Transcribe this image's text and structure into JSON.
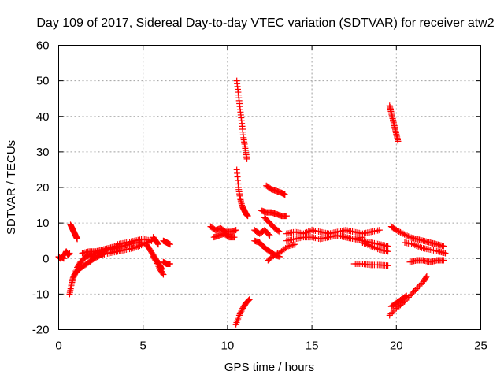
{
  "chart_data": {
    "type": "scatter",
    "title": "Day 109 of 2017, Sidereal Day-to-day VTEC variation (SDTVAR) for receiver atw2",
    "xlabel": "GPS time / hours",
    "ylabel": "SDTVAR / TECUs",
    "xlim": [
      0,
      25
    ],
    "ylim": [
      -20,
      60
    ],
    "xticks": [
      "0",
      "5",
      "10",
      "15",
      "20",
      "25"
    ],
    "yticks": [
      "-20",
      "-10",
      "0",
      "10",
      "20",
      "30",
      "40",
      "50",
      "60"
    ],
    "grid": true,
    "marker": "plus",
    "color": "#ff0000",
    "series": [
      {
        "name": "s1",
        "x": [
          0.0,
          0.1,
          0.2,
          0.3
        ],
        "y": [
          0.5,
          0.0,
          0.5,
          0.0
        ]
      },
      {
        "name": "s2",
        "x": [
          0.35,
          0.45,
          0.55,
          0.65
        ],
        "y": [
          1.0,
          2.0,
          1.0,
          1.5
        ]
      },
      {
        "name": "s3",
        "x": [
          0.7,
          0.8,
          0.9,
          1.0,
          1.1
        ],
        "y": [
          9.5,
          8.5,
          7.5,
          6.5,
          5.5
        ]
      },
      {
        "name": "s4",
        "x": [
          0.65,
          0.75,
          0.85,
          1.0,
          1.2,
          1.5,
          1.8,
          2.1,
          2.4,
          2.7
        ],
        "y": [
          -10.0,
          -7.5,
          -5.5,
          -4.0,
          -3.0,
          -2.0,
          -1.0,
          0.0,
          0.8,
          1.5
        ]
      },
      {
        "name": "s5",
        "x": [
          0.9,
          1.1,
          1.3,
          1.6,
          1.9,
          2.2,
          2.6,
          3.0,
          3.4,
          3.8
        ],
        "y": [
          -5.0,
          -2.5,
          -1.0,
          0.5,
          1.0,
          1.5,
          2.0,
          2.5,
          3.0,
          3.5
        ]
      },
      {
        "name": "s6",
        "x": [
          1.4,
          1.8,
          2.2,
          2.6,
          3.0,
          3.4,
          3.8,
          4.2,
          4.6,
          5.0
        ],
        "y": [
          1.5,
          2.0,
          2.0,
          2.5,
          3.0,
          3.5,
          3.5,
          4.0,
          4.5,
          4.5
        ]
      },
      {
        "name": "s7",
        "x": [
          2.0,
          2.5,
          3.0,
          3.5,
          4.0,
          4.5,
          5.0,
          5.5
        ],
        "y": [
          0.5,
          1.0,
          1.5,
          2.0,
          2.5,
          3.0,
          4.0,
          5.0
        ]
      },
      {
        "name": "s8",
        "x": [
          3.5,
          4.0,
          4.5,
          5.0,
          5.5
        ],
        "y": [
          4.0,
          4.5,
          5.0,
          5.5,
          5.0
        ]
      },
      {
        "name": "s9",
        "x": [
          5.2,
          5.4,
          5.6,
          5.8,
          6.0,
          6.1
        ],
        "y": [
          4.0,
          2.5,
          1.0,
          -0.5,
          -2.0,
          -3.0
        ]
      },
      {
        "name": "s10",
        "x": [
          5.6,
          5.8,
          6.0,
          6.2
        ],
        "y": [
          0.5,
          -1.0,
          -3.0,
          -4.5
        ]
      },
      {
        "name": "s11",
        "x": [
          5.6,
          5.75,
          5.9
        ],
        "y": [
          6.0,
          5.0,
          4.0
        ]
      },
      {
        "name": "s12",
        "x": [
          6.2,
          6.4,
          6.6
        ],
        "y": [
          -1.0,
          -1.5,
          -1.5
        ]
      },
      {
        "name": "s13",
        "x": [
          6.2,
          6.4,
          6.6
        ],
        "y": [
          5.0,
          4.5,
          4.0
        ]
      },
      {
        "name": "s14",
        "x": [
          9.0,
          9.3,
          9.6,
          9.9,
          10.2,
          10.5
        ],
        "y": [
          9.0,
          8.0,
          8.5,
          7.5,
          7.5,
          8.0
        ]
      },
      {
        "name": "s15",
        "x": [
          9.2,
          9.5,
          9.8,
          10.1,
          10.4
        ],
        "y": [
          6.0,
          6.5,
          7.0,
          6.0,
          6.0
        ]
      },
      {
        "name": "s16",
        "x": [
          10.55,
          10.65,
          10.75,
          10.85,
          10.95,
          11.05,
          11.15
        ],
        "y": [
          50.0,
          46.0,
          42.0,
          38.0,
          34.0,
          31.0,
          28.0
        ]
      },
      {
        "name": "s17",
        "x": [
          10.55,
          10.65,
          10.75,
          10.85
        ],
        "y": [
          25.0,
          20.0,
          17.0,
          15.0
        ]
      },
      {
        "name": "s18",
        "x": [
          10.9,
          11.0,
          11.1,
          11.2
        ],
        "y": [
          14.5,
          13.5,
          12.5,
          12.0
        ]
      },
      {
        "name": "s19",
        "x": [
          10.5,
          10.7,
          10.9,
          11.1,
          11.3
        ],
        "y": [
          -18.5,
          -16.0,
          -14.0,
          -12.5,
          -11.5
        ]
      },
      {
        "name": "s20",
        "x": [
          11.6,
          11.9,
          12.2,
          12.5
        ],
        "y": [
          8.0,
          7.0,
          8.0,
          6.5
        ]
      },
      {
        "name": "s21",
        "x": [
          11.6,
          11.9,
          12.2,
          12.5,
          12.8,
          13.1
        ],
        "y": [
          5.0,
          4.5,
          3.0,
          2.0,
          1.0,
          0.5
        ]
      },
      {
        "name": "s22",
        "x": [
          12.3,
          12.6,
          12.9,
          13.2,
          13.4
        ],
        "y": [
          20.5,
          19.5,
          19.0,
          18.5,
          18.0
        ]
      },
      {
        "name": "s23",
        "x": [
          12.0,
          12.3,
          12.6,
          12.9,
          13.2,
          13.5
        ],
        "y": [
          13.5,
          13.0,
          13.0,
          12.5,
          12.0,
          12.0
        ]
      },
      {
        "name": "s24",
        "x": [
          12.2,
          12.5,
          12.8,
          13.1
        ],
        "y": [
          11.5,
          10.0,
          8.5,
          7.5
        ]
      },
      {
        "name": "s25",
        "x": [
          12.4,
          12.8,
          13.2,
          13.6,
          14.0
        ],
        "y": [
          -0.5,
          1.0,
          2.0,
          3.5,
          4.0
        ]
      },
      {
        "name": "s26",
        "x": [
          13.5,
          14.0,
          14.5,
          15.0,
          15.5,
          16.0,
          16.5,
          17.0,
          17.5,
          18.0,
          18.5,
          19.0
        ],
        "y": [
          7.0,
          7.5,
          7.0,
          8.0,
          7.5,
          7.0,
          7.5,
          8.0,
          7.5,
          7.0,
          7.5,
          8.0
        ]
      },
      {
        "name": "s27",
        "x": [
          13.5,
          14.0,
          14.5,
          15.0,
          15.5,
          16.0,
          16.5,
          17.0,
          17.5,
          18.0
        ],
        "y": [
          5.0,
          5.5,
          6.0,
          6.0,
          5.5,
          6.0,
          6.5,
          6.0,
          5.5,
          6.0
        ]
      },
      {
        "name": "s28",
        "x": [
          16.5,
          17.0,
          17.5,
          18.0,
          18.5,
          19.0,
          19.5
        ],
        "y": [
          6.5,
          6.0,
          5.5,
          5.0,
          4.5,
          4.0,
          3.5
        ]
      },
      {
        "name": "s29",
        "x": [
          18.0,
          18.5,
          19.0,
          19.5
        ],
        "y": [
          4.5,
          3.5,
          2.5,
          2.0
        ]
      },
      {
        "name": "s30",
        "x": [
          17.5,
          18.0,
          18.5,
          19.0,
          19.5
        ],
        "y": [
          -1.5,
          -1.5,
          -1.8,
          -1.8,
          -2.0
        ]
      },
      {
        "name": "s31",
        "x": [
          19.6,
          19.7,
          19.8,
          19.9,
          20.0,
          20.1
        ],
        "y": [
          43.0,
          41.0,
          39.0,
          37.0,
          35.0,
          33.0
        ]
      },
      {
        "name": "s32",
        "x": [
          19.7,
          20.0,
          20.4,
          20.8,
          21.2,
          21.6,
          22.0,
          22.4,
          22.8
        ],
        "y": [
          9.0,
          8.0,
          7.0,
          6.0,
          5.5,
          5.0,
          4.5,
          4.0,
          3.5
        ]
      },
      {
        "name": "s33",
        "x": [
          20.5,
          21.0,
          21.5,
          22.0,
          22.5,
          22.9
        ],
        "y": [
          4.5,
          4.0,
          3.0,
          2.5,
          2.0,
          1.5
        ]
      },
      {
        "name": "s34",
        "x": [
          20.8,
          21.2,
          21.6,
          22.0,
          22.4,
          22.8
        ],
        "y": [
          -1.0,
          -0.5,
          -0.5,
          -1.0,
          -0.5,
          -0.5
        ]
      },
      {
        "name": "s35",
        "x": [
          19.6,
          20.0,
          20.4,
          20.8,
          21.2,
          21.6,
          21.8
        ],
        "y": [
          -16.0,
          -14.0,
          -12.5,
          -10.5,
          -8.5,
          -6.5,
          -5.0
        ]
      },
      {
        "name": "s36",
        "x": [
          19.7,
          20.0,
          20.3,
          20.6
        ],
        "y": [
          -13.5,
          -12.5,
          -11.5,
          -10.5
        ]
      }
    ]
  }
}
